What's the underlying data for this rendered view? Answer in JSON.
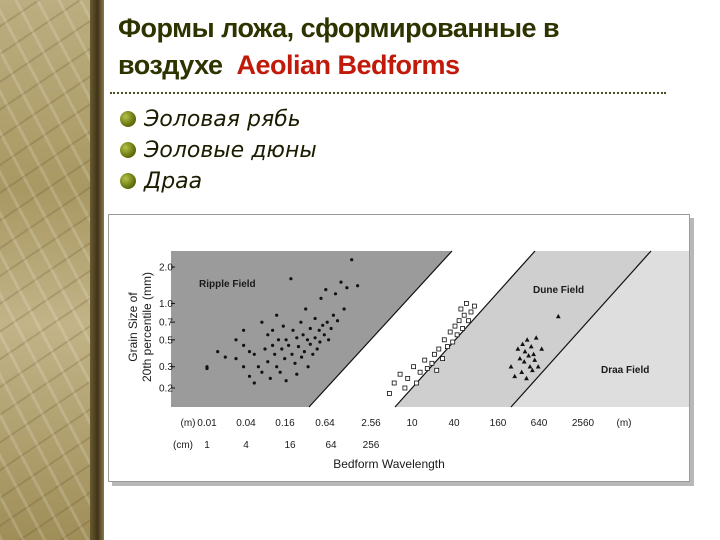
{
  "title": {
    "line1": "Формы ложа, сформированные в",
    "line2_ru": "воздухе",
    "line2_en": "Aeolian Bedforms"
  },
  "bullets": [
    "Эоловая рябь",
    "Эоловые дюны",
    "Драа"
  ],
  "chart_data": {
    "type": "scatter",
    "ylabel": "Grain Size of 20th percentile (mm)",
    "xlabel": "Bedform Wavelength",
    "y_ticks": [
      "2.0",
      "1.0",
      "0.7",
      "0.5",
      "0.3",
      "0.2"
    ],
    "x_ticks_m": [
      "(m)",
      "0.01",
      "0.04",
      "0.16",
      "0.64",
      "2.56",
      "10",
      "40",
      "160",
      "640",
      "2560",
      "(m)"
    ],
    "x_ticks_cm": [
      "(cm)",
      "1",
      "4",
      "16",
      "64",
      "256"
    ],
    "fields": [
      "Ripple Field",
      "Dune Field",
      "Draa Field"
    ],
    "colors": {
      "ripple_field": "#9b9b9b",
      "dune_field": "#cfcfcf",
      "draa_field": "#dedede"
    },
    "series": [
      {
        "name": "Ripple Field",
        "marker": "circle",
        "points": [
          [
            0.01,
            0.3
          ],
          [
            0.01,
            0.29
          ],
          [
            0.015,
            0.4
          ],
          [
            0.02,
            0.36
          ],
          [
            0.03,
            0.5
          ],
          [
            0.03,
            0.35
          ],
          [
            0.04,
            0.45
          ],
          [
            0.04,
            0.3
          ],
          [
            0.04,
            0.6
          ],
          [
            0.05,
            0.4
          ],
          [
            0.05,
            0.25
          ],
          [
            0.06,
            0.38
          ],
          [
            0.06,
            0.22
          ],
          [
            0.07,
            0.3
          ],
          [
            0.08,
            0.7
          ],
          [
            0.08,
            0.27
          ],
          [
            0.09,
            0.42
          ],
          [
            0.1,
            0.55
          ],
          [
            0.1,
            0.33
          ],
          [
            0.11,
            0.24
          ],
          [
            0.12,
            0.6
          ],
          [
            0.12,
            0.45
          ],
          [
            0.13,
            0.38
          ],
          [
            0.14,
            0.8
          ],
          [
            0.14,
            0.3
          ],
          [
            0.15,
            0.5
          ],
          [
            0.16,
            0.27
          ],
          [
            0.17,
            0.42
          ],
          [
            0.18,
            0.65
          ],
          [
            0.19,
            0.35
          ],
          [
            0.2,
            0.5
          ],
          [
            0.2,
            0.23
          ],
          [
            0.22,
            0.45
          ],
          [
            0.24,
            1.6
          ],
          [
            0.25,
            0.38
          ],
          [
            0.26,
            0.6
          ],
          [
            0.28,
            0.32
          ],
          [
            0.3,
            0.52
          ],
          [
            0.3,
            0.26
          ],
          [
            0.32,
            0.44
          ],
          [
            0.35,
            0.7
          ],
          [
            0.36,
            0.36
          ],
          [
            0.38,
            0.55
          ],
          [
            0.4,
            0.4
          ],
          [
            0.42,
            0.9
          ],
          [
            0.45,
            0.5
          ],
          [
            0.46,
            0.3
          ],
          [
            0.5,
            0.62
          ],
          [
            0.5,
            0.46
          ],
          [
            0.55,
            0.38
          ],
          [
            0.6,
            0.75
          ],
          [
            0.6,
            0.52
          ],
          [
            0.65,
            0.42
          ],
          [
            0.7,
            0.6
          ],
          [
            0.72,
            0.48
          ],
          [
            0.75,
            1.1
          ],
          [
            0.8,
            0.66
          ],
          [
            0.85,
            0.55
          ],
          [
            0.9,
            1.3
          ],
          [
            0.95,
            0.7
          ],
          [
            1.0,
            0.5
          ],
          [
            1.1,
            0.62
          ],
          [
            1.2,
            0.8
          ],
          [
            1.3,
            1.2
          ],
          [
            1.4,
            0.72
          ],
          [
            1.6,
            1.5
          ],
          [
            1.8,
            0.9
          ],
          [
            2.0,
            1.35
          ],
          [
            2.4,
            2.3
          ],
          [
            3.0,
            1.4
          ]
        ]
      },
      {
        "name": "Dune Field",
        "marker": "square",
        "points": [
          [
            10,
            0.18
          ],
          [
            12,
            0.22
          ],
          [
            15,
            0.26
          ],
          [
            18,
            0.2
          ],
          [
            20,
            0.24
          ],
          [
            25,
            0.3
          ],
          [
            28,
            0.22
          ],
          [
            32,
            0.27
          ],
          [
            38,
            0.34
          ],
          [
            42,
            0.29
          ],
          [
            50,
            0.32
          ],
          [
            55,
            0.38
          ],
          [
            60,
            0.28
          ],
          [
            65,
            0.42
          ],
          [
            75,
            0.35
          ],
          [
            80,
            0.5
          ],
          [
            90,
            0.44
          ],
          [
            100,
            0.58
          ],
          [
            110,
            0.48
          ],
          [
            120,
            0.65
          ],
          [
            130,
            0.55
          ],
          [
            140,
            0.72
          ],
          [
            150,
            0.9
          ],
          [
            160,
            0.62
          ],
          [
            170,
            0.8
          ],
          [
            185,
            1.0
          ],
          [
            200,
            0.72
          ],
          [
            220,
            0.85
          ],
          [
            250,
            0.95
          ]
        ]
      },
      {
        "name": "Draa Field",
        "marker": "triangle",
        "points": [
          [
            1000,
            0.3
          ],
          [
            1150,
            0.25
          ],
          [
            1300,
            0.42
          ],
          [
            1400,
            0.35
          ],
          [
            1500,
            0.27
          ],
          [
            1550,
            0.46
          ],
          [
            1650,
            0.33
          ],
          [
            1700,
            0.4
          ],
          [
            1800,
            0.24
          ],
          [
            1850,
            0.5
          ],
          [
            1950,
            0.37
          ],
          [
            2050,
            0.3
          ],
          [
            2150,
            0.44
          ],
          [
            2250,
            0.28
          ],
          [
            2350,
            0.38
          ],
          [
            2450,
            0.34
          ],
          [
            2600,
            0.52
          ],
          [
            2800,
            0.3
          ],
          [
            3200,
            0.42
          ],
          [
            6000,
            0.78
          ]
        ]
      }
    ],
    "ylim": [
      0.15,
      2.3
    ],
    "xscale": "log"
  }
}
